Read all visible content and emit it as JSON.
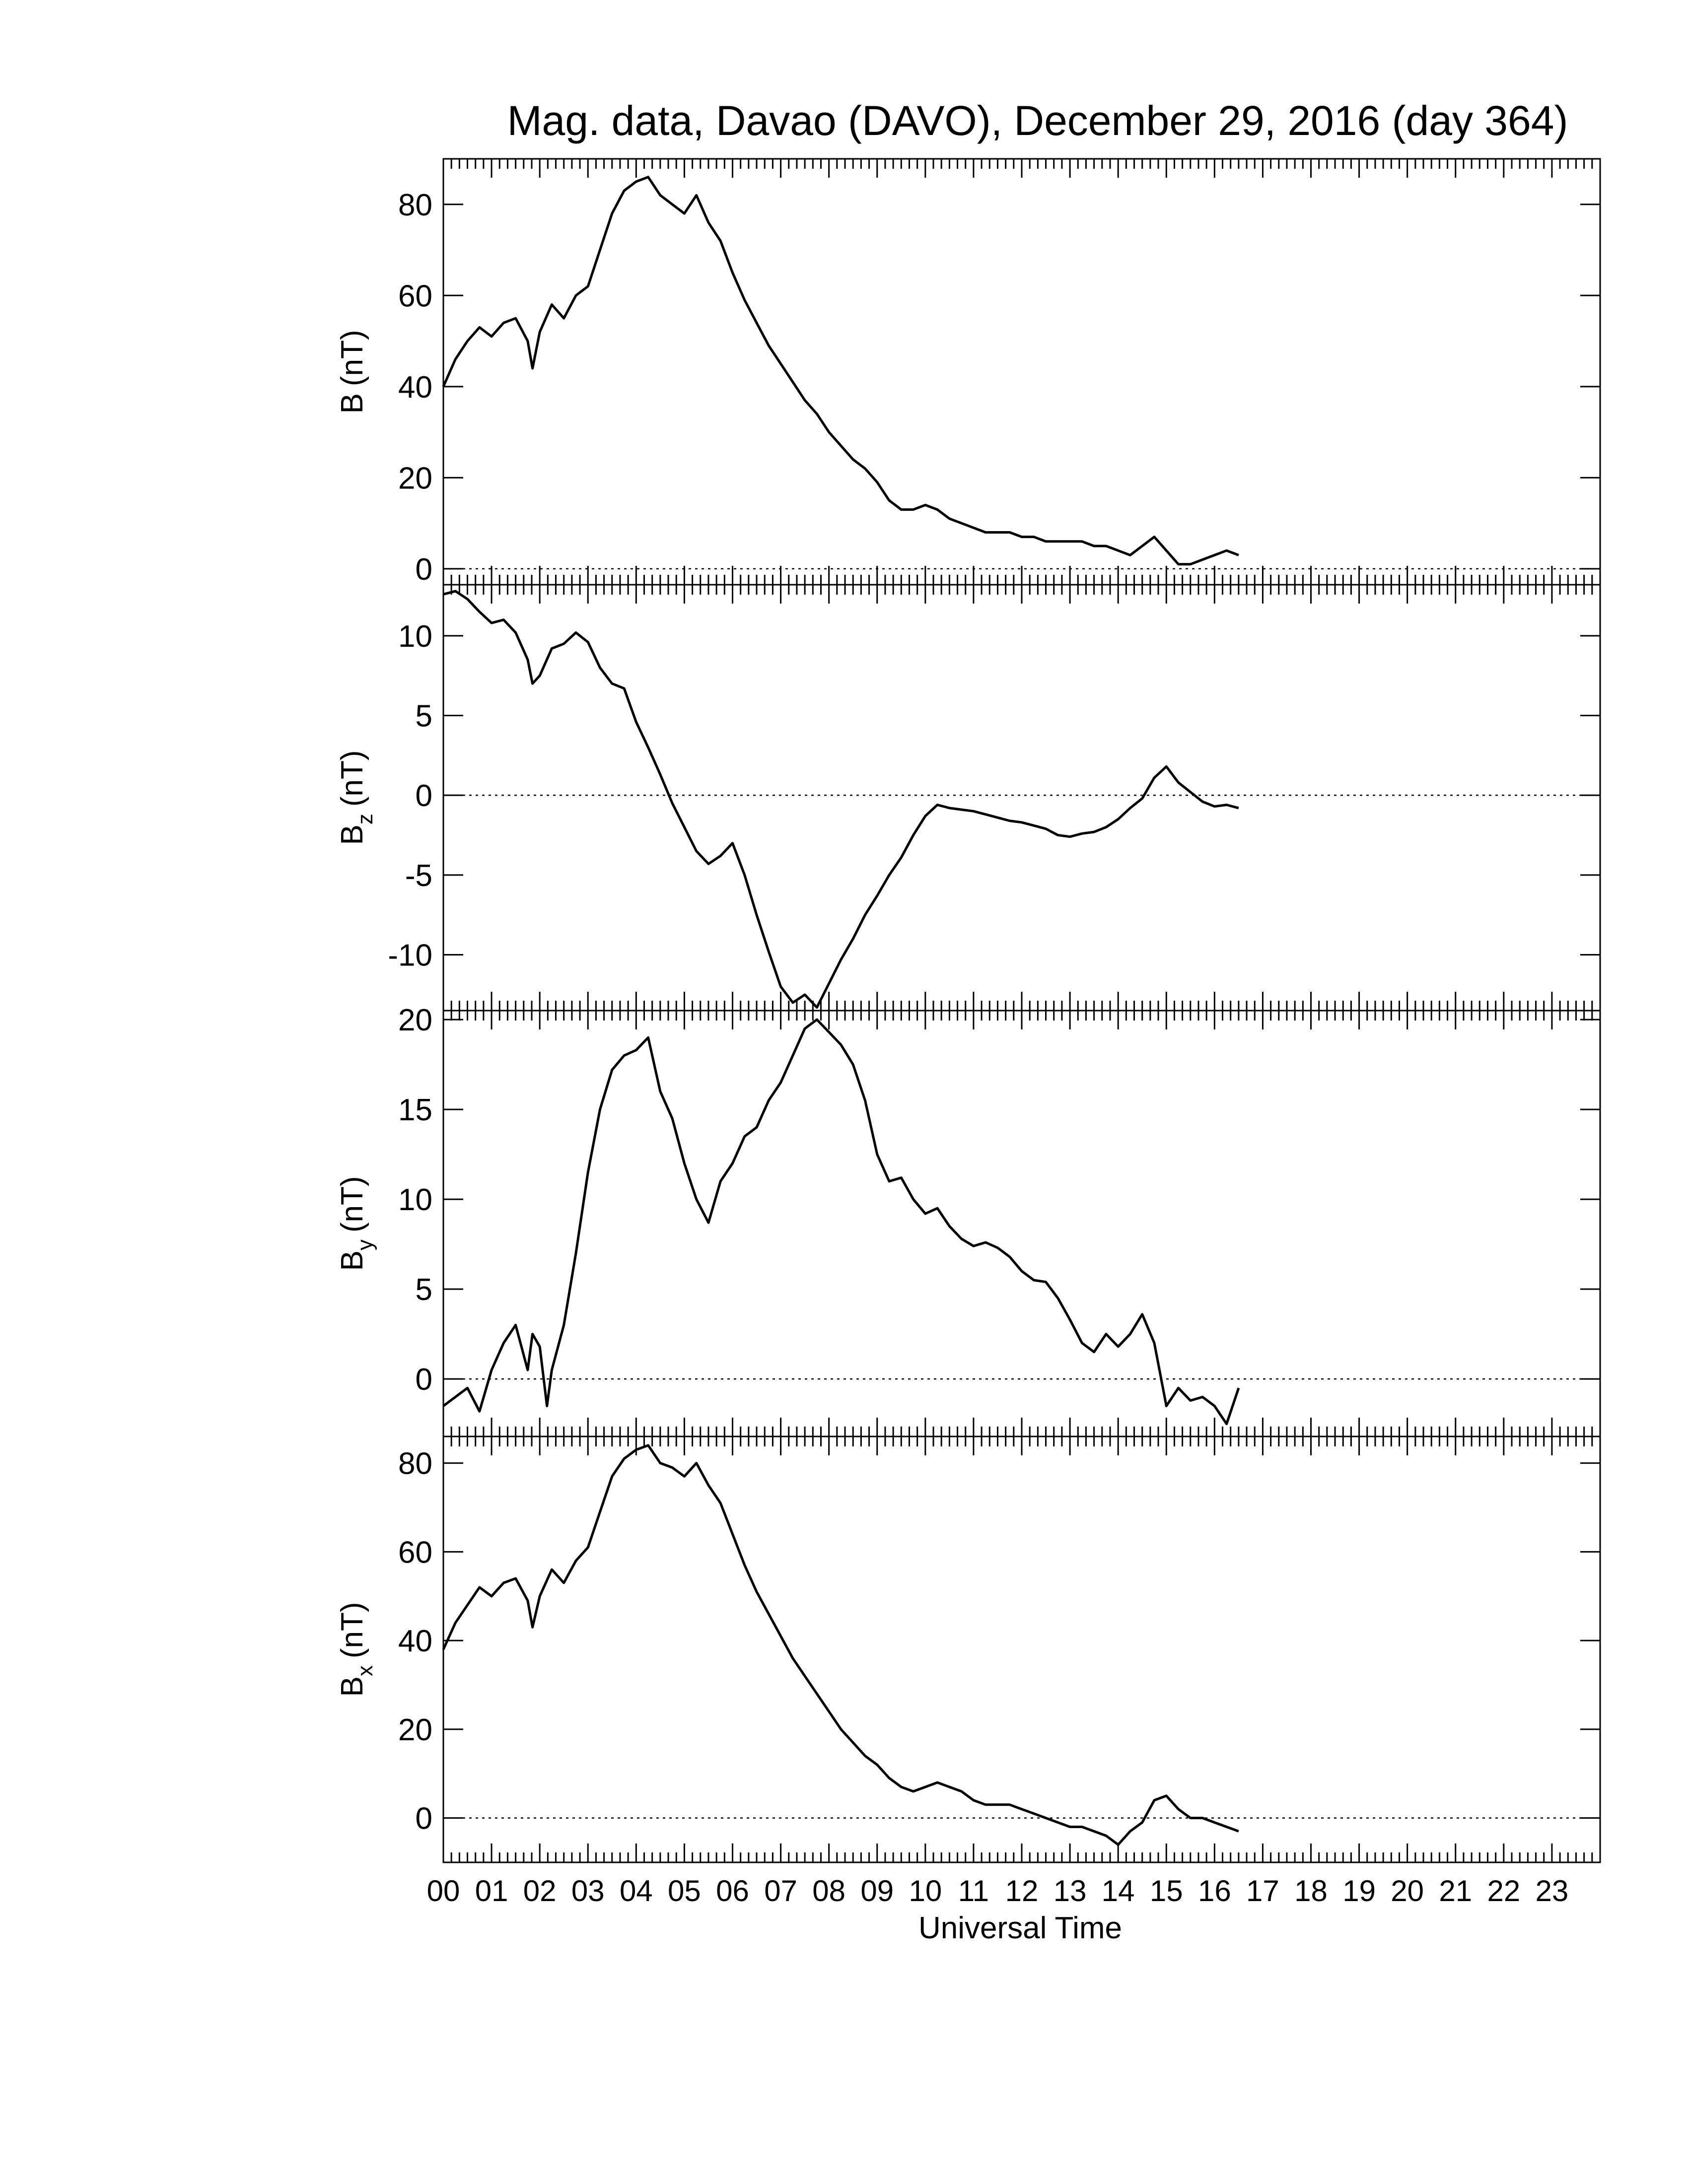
{
  "chart_data": {
    "type": "line",
    "title": "Mag. data, Davao (DAVO), December 29, 2016 (day 364)",
    "xlabel": "Universal Time",
    "xlim": [
      0,
      24
    ],
    "x_ticks": [
      {
        "value": 0,
        "label": "00"
      },
      {
        "value": 1,
        "label": "01"
      },
      {
        "value": 2,
        "label": "02"
      },
      {
        "value": 3,
        "label": "03"
      },
      {
        "value": 4,
        "label": "04"
      },
      {
        "value": 5,
        "label": "05"
      },
      {
        "value": 6,
        "label": "06"
      },
      {
        "value": 7,
        "label": "07"
      },
      {
        "value": 8,
        "label": "08"
      },
      {
        "value": 9,
        "label": "09"
      },
      {
        "value": 10,
        "label": "10"
      },
      {
        "value": 11,
        "label": "11"
      },
      {
        "value": 12,
        "label": "12"
      },
      {
        "value": 13,
        "label": "13"
      },
      {
        "value": 14,
        "label": "14"
      },
      {
        "value": 15,
        "label": "15"
      },
      {
        "value": 16,
        "label": "16"
      },
      {
        "value": 17,
        "label": "17"
      },
      {
        "value": 18,
        "label": "18"
      },
      {
        "value": 19,
        "label": "19"
      },
      {
        "value": 20,
        "label": "20"
      },
      {
        "value": 21,
        "label": "21"
      },
      {
        "value": 22,
        "label": "22"
      },
      {
        "value": 23,
        "label": "23"
      }
    ],
    "grid": false,
    "zero_line": "dotted",
    "line_color": "#000000",
    "panels": [
      {
        "ylabel_main": "B",
        "ylabel_sub": "",
        "ylabel_unit": "(nT)",
        "ylim": [
          -3.5,
          90
        ],
        "yticks": [
          {
            "value": 0,
            "label": "0"
          },
          {
            "value": 20,
            "label": "20"
          },
          {
            "value": 40,
            "label": "40"
          },
          {
            "value": 60,
            "label": "60"
          },
          {
            "value": 80,
            "label": "80"
          }
        ],
        "x": [
          0,
          0.25,
          0.5,
          0.75,
          1.0,
          1.25,
          1.5,
          1.75,
          1.85,
          2.0,
          2.25,
          2.5,
          2.75,
          3.0,
          3.25,
          3.5,
          3.75,
          4.0,
          4.25,
          4.5,
          4.75,
          5.0,
          5.25,
          5.5,
          5.75,
          6.0,
          6.25,
          6.5,
          6.75,
          7.0,
          7.25,
          7.5,
          7.75,
          8.0,
          8.25,
          8.5,
          8.75,
          9.0,
          9.25,
          9.5,
          9.75,
          10.0,
          10.25,
          10.5,
          10.75,
          11.0,
          11.25,
          11.5,
          11.75,
          12.0,
          12.25,
          12.5,
          12.75,
          13.0,
          13.25,
          13.5,
          13.75,
          14.0,
          14.25,
          14.5,
          14.75,
          15.0,
          15.25,
          15.5,
          15.75,
          16.0,
          16.25,
          16.5
        ],
        "y": [
          40,
          46,
          50,
          53,
          51,
          54,
          55,
          50,
          44,
          52,
          58,
          55,
          60,
          62,
          70,
          78,
          83,
          85,
          86,
          82,
          80,
          78,
          82,
          76,
          72,
          65,
          59,
          54,
          49,
          45,
          41,
          37,
          34,
          30,
          27,
          24,
          22,
          19,
          15,
          13,
          13,
          14,
          13,
          11,
          10,
          9,
          8,
          8,
          8,
          7,
          7,
          6,
          6,
          6,
          6,
          5,
          5,
          4,
          3,
          5,
          7,
          4,
          1,
          1,
          2,
          3,
          4,
          3
        ]
      },
      {
        "ylabel_main": "B",
        "ylabel_sub": "z",
        "ylabel_unit": "(nT)",
        "ylim": [
          -13.5,
          13.2
        ],
        "yticks": [
          {
            "value": -10,
            "label": "-10"
          },
          {
            "value": -5,
            "label": "-5"
          },
          {
            "value": 0,
            "label": "0"
          },
          {
            "value": 5,
            "label": "5"
          },
          {
            "value": 10,
            "label": "10"
          }
        ],
        "x": [
          0,
          0.25,
          0.5,
          0.75,
          1.0,
          1.25,
          1.5,
          1.75,
          1.85,
          2.0,
          2.25,
          2.5,
          2.75,
          3.0,
          3.25,
          3.5,
          3.75,
          4.0,
          4.25,
          4.5,
          4.75,
          5.0,
          5.25,
          5.5,
          5.75,
          6.0,
          6.25,
          6.5,
          6.75,
          7.0,
          7.25,
          7.5,
          7.75,
          8.0,
          8.25,
          8.5,
          8.75,
          9.0,
          9.25,
          9.5,
          9.75,
          10.0,
          10.25,
          10.5,
          10.75,
          11.0,
          11.25,
          11.5,
          11.75,
          12.0,
          12.25,
          12.5,
          12.75,
          13.0,
          13.25,
          13.5,
          13.75,
          14.0,
          14.25,
          14.5,
          14.75,
          15.0,
          15.25,
          15.5,
          15.75,
          16.0,
          16.25,
          16.5
        ],
        "y": [
          12.6,
          12.8,
          12.3,
          11.5,
          10.8,
          11.0,
          10.2,
          8.5,
          7.0,
          7.5,
          9.2,
          9.5,
          10.2,
          9.6,
          8.0,
          7.0,
          6.7,
          4.6,
          3.0,
          1.3,
          -0.5,
          -2.0,
          -3.5,
          -4.3,
          -3.8,
          -3.0,
          -5.0,
          -7.5,
          -9.8,
          -12.0,
          -13.0,
          -12.5,
          -13.3,
          -11.8,
          -10.3,
          -9.0,
          -7.5,
          -6.3,
          -5.0,
          -3.9,
          -2.5,
          -1.3,
          -0.6,
          -0.8,
          -0.9,
          -1.0,
          -1.2,
          -1.4,
          -1.6,
          -1.7,
          -1.9,
          -2.1,
          -2.5,
          -2.6,
          -2.4,
          -2.3,
          -2.0,
          -1.5,
          -0.8,
          -0.2,
          1.1,
          1.8,
          0.8,
          0.2,
          -0.4,
          -0.7,
          -0.6,
          -0.8
        ]
      },
      {
        "ylabel_main": "B",
        "ylabel_sub": "y",
        "ylabel_unit": "(nT)",
        "ylim": [
          -3.2,
          20.5
        ],
        "yticks": [
          {
            "value": 0,
            "label": "0"
          },
          {
            "value": 5,
            "label": "5"
          },
          {
            "value": 10,
            "label": "10"
          },
          {
            "value": 15,
            "label": "15"
          },
          {
            "value": 20,
            "label": "20"
          }
        ],
        "x": [
          0,
          0.25,
          0.5,
          0.75,
          1.0,
          1.25,
          1.5,
          1.75,
          1.85,
          2.0,
          2.15,
          2.25,
          2.5,
          2.75,
          3.0,
          3.25,
          3.5,
          3.75,
          4.0,
          4.25,
          4.5,
          4.75,
          5.0,
          5.25,
          5.5,
          5.75,
          6.0,
          6.25,
          6.5,
          6.75,
          7.0,
          7.25,
          7.5,
          7.75,
          8.0,
          8.25,
          8.5,
          8.75,
          9.0,
          9.25,
          9.5,
          9.75,
          10.0,
          10.25,
          10.5,
          10.75,
          11.0,
          11.25,
          11.5,
          11.75,
          12.0,
          12.25,
          12.5,
          12.75,
          13.0,
          13.25,
          13.5,
          13.75,
          14.0,
          14.25,
          14.5,
          14.75,
          15.0,
          15.25,
          15.5,
          15.75,
          16.0,
          16.25,
          16.5
        ],
        "y": [
          -1.5,
          -1.0,
          -0.5,
          -1.8,
          0.5,
          2.0,
          3.0,
          0.5,
          2.5,
          1.8,
          -1.5,
          0.5,
          3.0,
          7.0,
          11.5,
          15.0,
          17.2,
          18.0,
          18.3,
          19.0,
          16.0,
          14.5,
          12.0,
          10.0,
          8.7,
          11.0,
          12.0,
          13.5,
          14.0,
          15.5,
          16.5,
          18.0,
          19.5,
          20.0,
          19.3,
          18.6,
          17.5,
          15.5,
          12.5,
          11.0,
          11.2,
          10.0,
          9.2,
          9.5,
          8.5,
          7.8,
          7.4,
          7.6,
          7.3,
          6.8,
          6.0,
          5.5,
          5.4,
          4.5,
          3.3,
          2.0,
          1.5,
          2.5,
          1.8,
          2.5,
          3.6,
          2.0,
          -1.5,
          -0.5,
          -1.2,
          -1.0,
          -1.5,
          -2.5,
          -0.5
        ]
      },
      {
        "ylabel_main": "B",
        "ylabel_sub": "x",
        "ylabel_unit": "(nT)",
        "ylim": [
          -10,
          86
        ],
        "yticks": [
          {
            "value": 0,
            "label": "0"
          },
          {
            "value": 20,
            "label": "20"
          },
          {
            "value": 40,
            "label": "40"
          },
          {
            "value": 60,
            "label": "60"
          },
          {
            "value": 80,
            "label": "80"
          }
        ],
        "x": [
          0,
          0.25,
          0.5,
          0.75,
          1.0,
          1.25,
          1.5,
          1.75,
          1.85,
          2.0,
          2.25,
          2.5,
          2.75,
          3.0,
          3.25,
          3.5,
          3.75,
          4.0,
          4.25,
          4.5,
          4.75,
          5.0,
          5.25,
          5.5,
          5.75,
          6.0,
          6.25,
          6.5,
          6.75,
          7.0,
          7.25,
          7.5,
          7.75,
          8.0,
          8.25,
          8.5,
          8.75,
          9.0,
          9.25,
          9.5,
          9.75,
          10.0,
          10.25,
          10.5,
          10.75,
          11.0,
          11.25,
          11.5,
          11.75,
          12.0,
          12.25,
          12.5,
          12.75,
          13.0,
          13.25,
          13.5,
          13.75,
          14.0,
          14.25,
          14.5,
          14.75,
          15.0,
          15.25,
          15.5,
          15.75,
          16.0,
          16.25,
          16.5
        ],
        "y": [
          38,
          44,
          48,
          52,
          50,
          53,
          54,
          49,
          43,
          50,
          56,
          53,
          58,
          61,
          69,
          77,
          81,
          83,
          84,
          80,
          79,
          77,
          80,
          75,
          71,
          64,
          57,
          51,
          46,
          41,
          36,
          32,
          28,
          24,
          20,
          17,
          14,
          12,
          9,
          7,
          6,
          7,
          8,
          7,
          6,
          4,
          3,
          3,
          3,
          2,
          1,
          0,
          -1,
          -2,
          -2,
          -3,
          -4,
          -6,
          -3,
          -1,
          4,
          5,
          2,
          0,
          0,
          -1,
          -2,
          -3
        ]
      }
    ]
  }
}
